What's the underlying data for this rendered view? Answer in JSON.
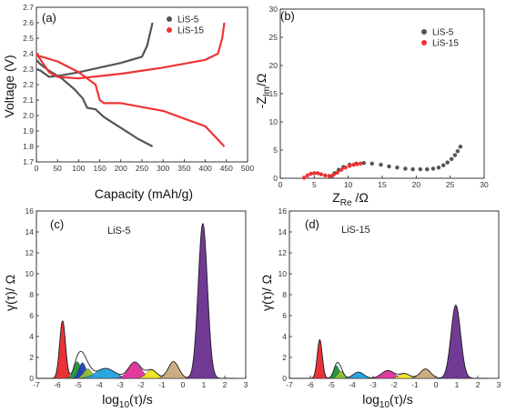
{
  "colors": {
    "lis5": "#555555",
    "lis15": "#ee3333",
    "axis": "#222222"
  },
  "chart_data": [
    {
      "id": "a",
      "type": "line",
      "panel_label": "(a)",
      "xlabel": "Capacity (mAh/g)",
      "ylabel": "Voltage (V)",
      "xlim": [
        0,
        500
      ],
      "ylim": [
        1.7,
        2.7
      ],
      "xticks": [
        0,
        50,
        100,
        150,
        200,
        250,
        300,
        350,
        400,
        450,
        500
      ],
      "yticks": [
        1.7,
        1.8,
        1.9,
        2.0,
        2.1,
        2.2,
        2.3,
        2.4,
        2.5,
        2.6,
        2.7
      ],
      "legend_position": "top-right",
      "series": [
        {
          "name": "LiS-5",
          "color": "#555555",
          "part": "discharge",
          "x": [
            0,
            10,
            30,
            60,
            90,
            110,
            120,
            140,
            160,
            200,
            240,
            275
          ],
          "y": [
            2.36,
            2.33,
            2.29,
            2.24,
            2.17,
            2.11,
            2.05,
            2.04,
            1.99,
            1.92,
            1.85,
            1.8
          ]
        },
        {
          "name": "LiS-5",
          "color": "#555555",
          "part": "charge",
          "x": [
            0,
            10,
            30,
            60,
            100,
            150,
            200,
            250,
            262,
            268,
            275
          ],
          "y": [
            2.3,
            2.29,
            2.25,
            2.26,
            2.28,
            2.31,
            2.34,
            2.38,
            2.45,
            2.52,
            2.6
          ]
        },
        {
          "name": "LiS-15",
          "color": "#ee3333",
          "part": "discharge",
          "x": [
            0,
            50,
            100,
            140,
            150,
            160,
            200,
            300,
            400,
            445
          ],
          "y": [
            2.39,
            2.35,
            2.28,
            2.2,
            2.1,
            2.08,
            2.08,
            2.03,
            1.93,
            1.8
          ]
        },
        {
          "name": "LiS-15",
          "color": "#ee3333",
          "part": "charge",
          "x": [
            0,
            30,
            50,
            100,
            200,
            300,
            400,
            430,
            440,
            445
          ],
          "y": [
            2.4,
            2.28,
            2.25,
            2.24,
            2.27,
            2.31,
            2.36,
            2.4,
            2.5,
            2.6
          ]
        }
      ]
    },
    {
      "id": "b",
      "type": "scatter",
      "panel_label": "(b)",
      "xlabel_main": "Z",
      "xlabel_sub": "Re",
      "xlabel_unit": " /Ω",
      "ylabel_main": "-Z",
      "ylabel_sub": "Im",
      "ylabel_unit": "/Ω",
      "xlim": [
        0,
        30
      ],
      "ylim": [
        0,
        30
      ],
      "xticks": [
        0,
        5,
        10,
        15,
        20,
        25,
        30
      ],
      "yticks": [
        0,
        5,
        10,
        15,
        20,
        25,
        30
      ],
      "legend_position": "top-right",
      "series": [
        {
          "name": "LiS-5",
          "color": "#555555",
          "x": [
            7.5,
            8.0,
            8.6,
            9.3,
            10.2,
            11.2,
            12.3,
            13.5,
            14.8,
            16.0,
            17.2,
            18.4,
            19.5,
            20.6,
            21.6,
            22.5,
            23.3,
            24.0,
            24.6,
            25.2,
            25.7,
            26.1,
            26.5
          ],
          "y": [
            0.3,
            0.9,
            1.5,
            2.0,
            2.4,
            2.6,
            2.7,
            2.6,
            2.4,
            2.1,
            1.9,
            1.7,
            1.6,
            1.6,
            1.6,
            1.7,
            1.9,
            2.3,
            2.8,
            3.4,
            4.1,
            4.8,
            5.6
          ]
        },
        {
          "name": "LiS-15",
          "color": "#ee3333",
          "x": [
            3.5,
            4.0,
            4.5,
            5.0,
            5.5,
            6.0,
            6.6,
            7.2,
            7.8,
            8.4,
            9.0,
            9.6,
            10.2,
            10.8,
            11.3,
            11.8
          ],
          "y": [
            0.1,
            0.5,
            0.8,
            0.9,
            0.9,
            0.7,
            0.5,
            0.4,
            0.6,
            1.0,
            1.5,
            1.9,
            2.2,
            2.4,
            2.5,
            2.6
          ]
        }
      ]
    },
    {
      "id": "c",
      "type": "area",
      "panel_label": "(c)",
      "inset_label": "LiS-5",
      "xlabel_main": "log",
      "xlabel_sub": "10",
      "xlabel_unit": "(τ)/s",
      "ylabel": "γ(τ)/ Ω",
      "xlim": [
        -7,
        3
      ],
      "ylim": [
        0,
        16
      ],
      "xticks": [
        -7,
        -6,
        -5,
        -4,
        -3,
        -2,
        -1,
        0,
        1,
        2,
        3
      ],
      "yticks": [
        0,
        2,
        4,
        6,
        8,
        10,
        12,
        14,
        16
      ],
      "peaks": [
        {
          "center": -5.75,
          "height": 5.5,
          "width": 0.14,
          "color": "#e8262d"
        },
        {
          "center": -5.05,
          "height": 1.6,
          "width": 0.17,
          "color": "#1f8f3a"
        },
        {
          "center": -4.8,
          "height": 1.5,
          "width": 0.17,
          "color": "#1c3fbf"
        },
        {
          "center": -4.55,
          "height": 0.9,
          "width": 0.2,
          "color": "#8fbf2e"
        },
        {
          "center": -3.7,
          "height": 0.95,
          "width": 0.45,
          "color": "#20a0e0"
        },
        {
          "center": -2.3,
          "height": 1.55,
          "width": 0.3,
          "color": "#e0309a"
        },
        {
          "center": -1.5,
          "height": 0.8,
          "width": 0.25,
          "color": "#f0e020"
        },
        {
          "center": -0.45,
          "height": 1.6,
          "width": 0.25,
          "color": "#c9a87a"
        },
        {
          "center": 0.95,
          "height": 14.8,
          "width": 0.22,
          "color": "#6a2f8f"
        }
      ],
      "envelope_color": "#222222"
    },
    {
      "id": "d",
      "type": "area",
      "panel_label": "(d)",
      "inset_label": "LiS-15",
      "xlabel_main": "log",
      "xlabel_sub": "10",
      "xlabel_unit": "(τ)/s",
      "ylabel": "γ(τ)/ Ω",
      "xlim": [
        -7,
        3
      ],
      "ylim": [
        0,
        16
      ],
      "xticks": [
        -7,
        -6,
        -5,
        -4,
        -3,
        -2,
        -1,
        0,
        1,
        2,
        3
      ],
      "yticks": [
        0,
        2,
        4,
        6,
        8,
        10,
        12,
        14,
        16
      ],
      "peaks": [
        {
          "center": -5.55,
          "height": 3.7,
          "width": 0.12,
          "color": "#e8262d"
        },
        {
          "center": -4.75,
          "height": 1.2,
          "width": 0.14,
          "color": "#1f8f3a"
        },
        {
          "center": -4.55,
          "height": 0.7,
          "width": 0.14,
          "color": "#8fbf2e"
        },
        {
          "center": -3.7,
          "height": 0.6,
          "width": 0.25,
          "color": "#20a0e0"
        },
        {
          "center": -2.3,
          "height": 0.75,
          "width": 0.3,
          "color": "#e0309a"
        },
        {
          "center": -1.5,
          "height": 0.45,
          "width": 0.25,
          "color": "#f0e020"
        },
        {
          "center": -0.5,
          "height": 0.9,
          "width": 0.25,
          "color": "#c9a87a"
        },
        {
          "center": 0.95,
          "height": 7.0,
          "width": 0.23,
          "color": "#6a2f8f"
        }
      ],
      "envelope_color": "#222222"
    }
  ]
}
